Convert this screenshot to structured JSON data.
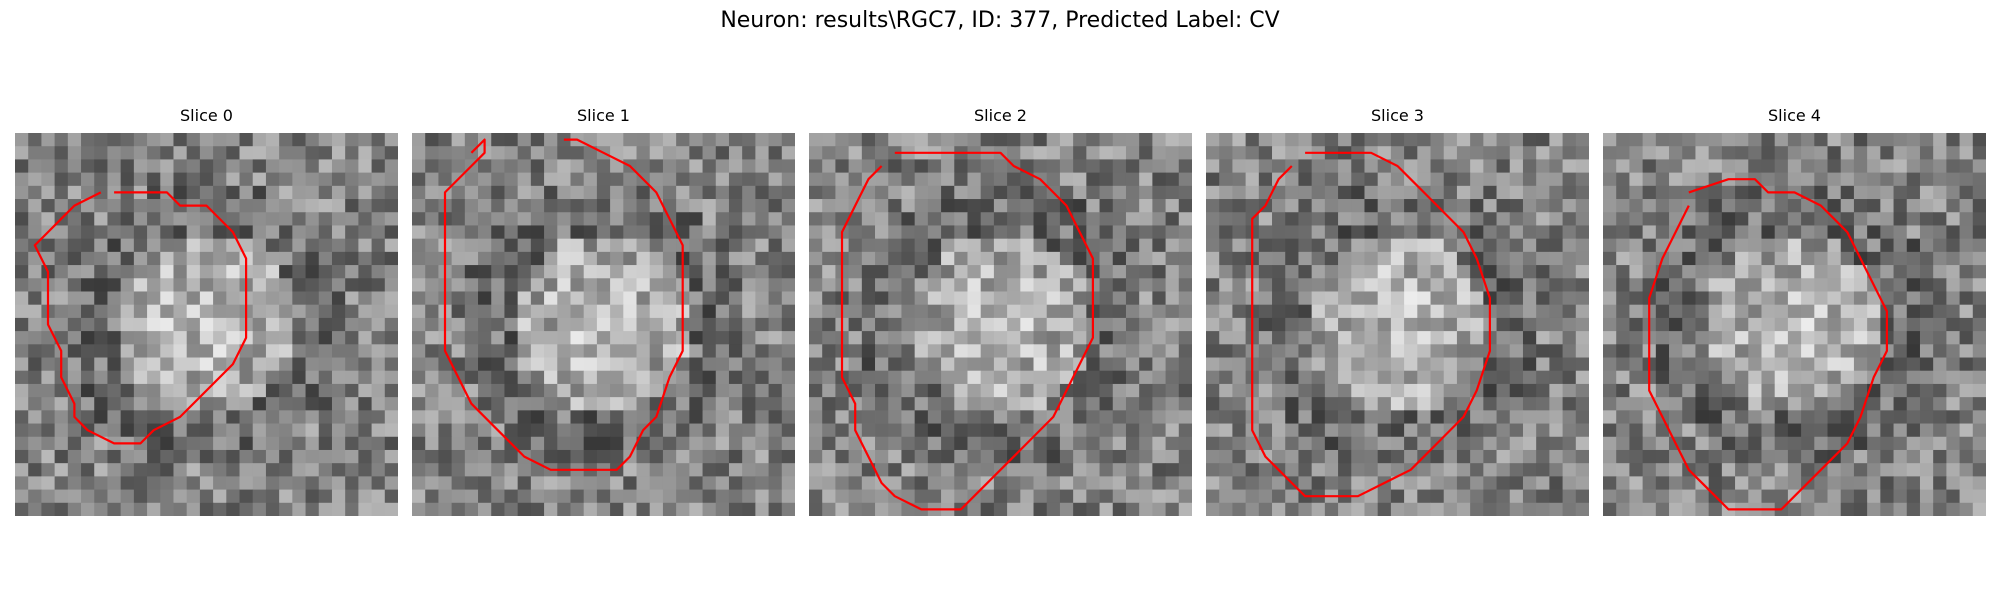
{
  "figure": {
    "title": "Neuron: results\\RGC7, ID: 377, Predicted Label: CV"
  },
  "slices": [
    {
      "label": "Slice 0",
      "contour": [
        [
          7,
          4
        ],
        [
          11,
          4
        ],
        [
          12,
          5
        ],
        [
          14,
          5
        ],
        [
          16,
          7
        ],
        [
          17,
          9
        ],
        [
          17,
          12
        ],
        [
          17,
          15
        ],
        [
          16,
          17
        ],
        [
          14,
          19
        ],
        [
          12,
          21
        ],
        [
          10,
          22
        ],
        [
          9,
          23
        ],
        [
          7,
          23
        ],
        [
          5,
          22
        ],
        [
          4,
          21
        ],
        [
          4,
          20
        ],
        [
          3,
          18
        ],
        [
          3,
          16
        ],
        [
          2,
          14
        ],
        [
          2,
          10
        ],
        [
          1,
          8
        ],
        [
          2,
          7
        ],
        [
          3,
          6
        ],
        [
          4,
          5
        ],
        [
          6,
          4
        ]
      ]
    },
    {
      "label": "Slice 1",
      "contour": [
        [
          4,
          1
        ],
        [
          5,
          0
        ],
        [
          5,
          1
        ],
        [
          4,
          2
        ],
        [
          2,
          4
        ],
        [
          2,
          8
        ],
        [
          2,
          13
        ],
        [
          2,
          16
        ],
        [
          3,
          18
        ],
        [
          4,
          20
        ],
        [
          6,
          22
        ],
        [
          8,
          24
        ],
        [
          10,
          25
        ],
        [
          13,
          25
        ],
        [
          15,
          25
        ],
        [
          16,
          24
        ],
        [
          17,
          22
        ],
        [
          18,
          21
        ],
        [
          19,
          18
        ],
        [
          20,
          16
        ],
        [
          20,
          12
        ],
        [
          20,
          8
        ],
        [
          19,
          6
        ],
        [
          18,
          4
        ],
        [
          16,
          2
        ],
        [
          14,
          1
        ],
        [
          12,
          0
        ],
        [
          11,
          0
        ]
      ]
    },
    {
      "label": "Slice 2",
      "contour": [
        [
          6,
          1
        ],
        [
          12,
          1
        ],
        [
          14,
          1
        ],
        [
          15,
          2
        ],
        [
          17,
          3
        ],
        [
          18,
          4
        ],
        [
          19,
          5
        ],
        [
          20,
          7
        ],
        [
          21,
          9
        ],
        [
          21,
          12
        ],
        [
          21,
          15
        ],
        [
          20,
          17
        ],
        [
          19,
          19
        ],
        [
          18,
          21
        ],
        [
          16,
          23
        ],
        [
          14,
          25
        ],
        [
          12,
          27
        ],
        [
          11,
          28
        ],
        [
          9,
          28
        ],
        [
          8,
          28
        ],
        [
          6,
          27
        ],
        [
          5,
          26
        ],
        [
          4,
          24
        ],
        [
          3,
          22
        ],
        [
          3,
          20
        ],
        [
          2,
          18
        ],
        [
          2,
          14
        ],
        [
          2,
          10
        ],
        [
          2,
          7
        ],
        [
          3,
          5
        ],
        [
          4,
          3
        ],
        [
          5,
          2
        ]
      ]
    },
    {
      "label": "Slice 3",
      "contour": [
        [
          7,
          1
        ],
        [
          12,
          1
        ],
        [
          14,
          2
        ],
        [
          15,
          3
        ],
        [
          16,
          4
        ],
        [
          17,
          5
        ],
        [
          19,
          7
        ],
        [
          20,
          9
        ],
        [
          21,
          12
        ],
        [
          21,
          16
        ],
        [
          20,
          19
        ],
        [
          19,
          21
        ],
        [
          17,
          23
        ],
        [
          15,
          25
        ],
        [
          13,
          26
        ],
        [
          11,
          27
        ],
        [
          9,
          27
        ],
        [
          7,
          27
        ],
        [
          6,
          26
        ],
        [
          5,
          25
        ],
        [
          4,
          24
        ],
        [
          3,
          22
        ],
        [
          3,
          18
        ],
        [
          3,
          14
        ],
        [
          3,
          10
        ],
        [
          3,
          6
        ],
        [
          4,
          5
        ],
        [
          5,
          3
        ],
        [
          6,
          2
        ]
      ]
    },
    {
      "label": "Slice 4",
      "contour": [
        [
          6,
          4
        ],
        [
          9,
          3
        ],
        [
          11,
          3
        ],
        [
          12,
          4
        ],
        [
          14,
          4
        ],
        [
          16,
          5
        ],
        [
          17,
          6
        ],
        [
          18,
          7
        ],
        [
          19,
          9
        ],
        [
          20,
          11
        ],
        [
          21,
          13
        ],
        [
          21,
          16
        ],
        [
          20,
          18
        ],
        [
          19,
          21
        ],
        [
          18,
          23
        ],
        [
          16,
          25
        ],
        [
          14,
          27
        ],
        [
          13,
          28
        ],
        [
          11,
          28
        ],
        [
          9,
          28
        ],
        [
          8,
          27
        ],
        [
          6,
          25
        ],
        [
          5,
          23
        ],
        [
          4,
          21
        ],
        [
          3,
          19
        ],
        [
          3,
          16
        ],
        [
          3,
          12
        ],
        [
          4,
          9
        ],
        [
          5,
          7
        ],
        [
          6,
          5
        ]
      ]
    }
  ],
  "colors": {
    "contour": "#ff0000"
  }
}
